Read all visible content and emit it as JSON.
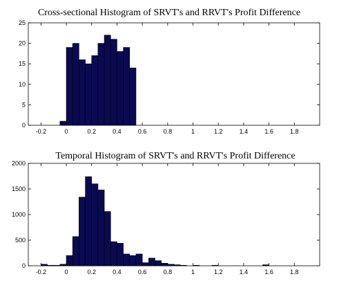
{
  "chart_data": [
    {
      "type": "bar",
      "title": "Cross-sectional Histogram of SRVT's and RRVT's Profit Difference",
      "xlabel": "",
      "ylabel": "",
      "xlim": [
        -0.3,
        2.0
      ],
      "ylim": [
        0,
        25
      ],
      "xticks": [
        -0.2,
        0,
        0.2,
        0.4,
        0.6,
        0.8,
        1,
        1.2,
        1.4,
        1.6,
        1.8
      ],
      "xtick_labels": [
        "-0.2",
        "0",
        "0.2",
        "0.4",
        "0.6",
        "0.8",
        "1",
        "1.2",
        "1.4",
        "1.6",
        "1.8"
      ],
      "yticks": [
        0,
        5,
        10,
        15,
        20,
        25
      ],
      "ytick_labels": [
        "0",
        "5",
        "10",
        "15",
        "20",
        "25"
      ],
      "grid": false,
      "bar_color": "#0a0a52",
      "bin_width": 0.05,
      "bins": [
        {
          "x0": -0.05,
          "value": 1
        },
        {
          "x0": 0.0,
          "value": 19
        },
        {
          "x0": 0.05,
          "value": 20
        },
        {
          "x0": 0.1,
          "value": 16
        },
        {
          "x0": 0.15,
          "value": 15
        },
        {
          "x0": 0.2,
          "value": 17
        },
        {
          "x0": 0.25,
          "value": 20
        },
        {
          "x0": 0.3,
          "value": 22
        },
        {
          "x0": 0.35,
          "value": 21
        },
        {
          "x0": 0.4,
          "value": 18
        },
        {
          "x0": 0.45,
          "value": 19
        },
        {
          "x0": 0.5,
          "value": 14
        }
      ]
    },
    {
      "type": "bar",
      "title": "Temporal Histogram of SRVT's and RRVT's Profit Difference",
      "xlabel": "",
      "ylabel": "",
      "xlim": [
        -0.3,
        2.0
      ],
      "ylim": [
        0,
        2000
      ],
      "xticks": [
        -0.2,
        0,
        0.2,
        0.4,
        0.6,
        0.8,
        1,
        1.2,
        1.4,
        1.6,
        1.8
      ],
      "xtick_labels": [
        "-0.2",
        "0",
        "0.2",
        "0.4",
        "0.6",
        "0.8",
        "1",
        "1.2",
        "1.4",
        "1.6",
        "1.8"
      ],
      "yticks": [
        0,
        500,
        1000,
        1500,
        2000
      ],
      "ytick_labels": [
        "0",
        "500",
        "1000",
        "1500",
        "2000"
      ],
      "grid": false,
      "bar_color": "#0a0a52",
      "bin_width": 0.05,
      "bins": [
        {
          "x0": -0.2,
          "value": 30
        },
        {
          "x0": -0.15,
          "value": 10
        },
        {
          "x0": -0.1,
          "value": 10
        },
        {
          "x0": -0.05,
          "value": 30
        },
        {
          "x0": 0.0,
          "value": 200
        },
        {
          "x0": 0.05,
          "value": 570
        },
        {
          "x0": 0.1,
          "value": 1340
        },
        {
          "x0": 0.15,
          "value": 1740
        },
        {
          "x0": 0.2,
          "value": 1600
        },
        {
          "x0": 0.25,
          "value": 1480
        },
        {
          "x0": 0.3,
          "value": 1060
        },
        {
          "x0": 0.35,
          "value": 470
        },
        {
          "x0": 0.4,
          "value": 440
        },
        {
          "x0": 0.45,
          "value": 230
        },
        {
          "x0": 0.5,
          "value": 200
        },
        {
          "x0": 0.55,
          "value": 230
        },
        {
          "x0": 0.6,
          "value": 60
        },
        {
          "x0": 0.65,
          "value": 150
        },
        {
          "x0": 0.7,
          "value": 100
        },
        {
          "x0": 0.75,
          "value": 50
        },
        {
          "x0": 0.8,
          "value": 30
        },
        {
          "x0": 0.85,
          "value": 20
        },
        {
          "x0": 0.9,
          "value": 10
        },
        {
          "x0": 1.0,
          "value": 10
        },
        {
          "x0": 1.15,
          "value": 10
        },
        {
          "x0": 1.55,
          "value": 20
        }
      ]
    }
  ]
}
